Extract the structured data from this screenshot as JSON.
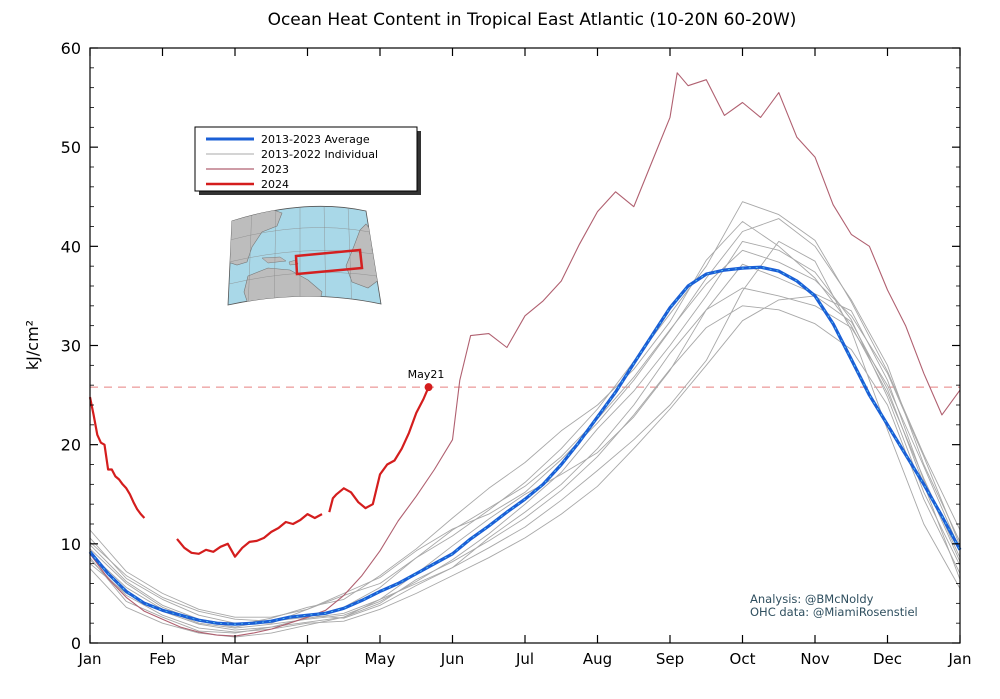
{
  "colors": {
    "average": "#1a5fd6",
    "average_core": "#5fc8f0",
    "individual": "#a8a8a8",
    "y2023": "#b06070",
    "y2024": "#d41d1d",
    "reference_line": "#e88080",
    "map_ocean": "#a9d8e8",
    "map_land": "#bdbdbd",
    "map_box": "#d42020"
  },
  "credits": {
    "analysis": "Analysis: @BMcNoldy",
    "data": "OHC data: @MiamiRosenstiel"
  },
  "chart_data": {
    "type": "line",
    "title": "Ocean Heat Content in Tropical East Atlantic (10-20N 60-20W)",
    "ylabel": "kJ/cm²",
    "xlabel": "",
    "ylim": [
      0,
      60
    ],
    "xlim": [
      0,
      12
    ],
    "yticks": [
      0,
      10,
      20,
      30,
      40,
      50,
      60
    ],
    "xtick_labels": [
      "Jan",
      "Feb",
      "Mar",
      "Apr",
      "May",
      "Jun",
      "Jul",
      "Aug",
      "Sep",
      "Oct",
      "Nov",
      "Dec",
      "Jan"
    ],
    "grid": false,
    "legend_position": "upper-left",
    "legend": [
      {
        "label": "2013-2023 Average",
        "series": "average"
      },
      {
        "label": "2013-2022 Individual",
        "series": "individual"
      },
      {
        "label": "2023",
        "series": "y2023"
      },
      {
        "label": "2024",
        "series": "y2024"
      }
    ],
    "reference_line": {
      "y": 25.8,
      "style": "dashed"
    },
    "annotation": {
      "text": "May21",
      "x": 4.67,
      "y": 25.8
    },
    "average": {
      "x": [
        0,
        0.25,
        0.5,
        0.75,
        1,
        1.25,
        1.5,
        1.75,
        2,
        2.25,
        2.5,
        2.75,
        3,
        3.25,
        3.5,
        3.75,
        4,
        4.25,
        4.5,
        4.75,
        5,
        5.25,
        5.5,
        5.75,
        6,
        6.25,
        6.5,
        6.75,
        7,
        7.25,
        7.5,
        7.75,
        8,
        8.25,
        8.5,
        8.75,
        9,
        9.25,
        9.5,
        9.75,
        10,
        10.25,
        10.5,
        10.75,
        11,
        11.25,
        11.5,
        11.75,
        12
      ],
      "y": [
        9.2,
        7.0,
        5.2,
        4.0,
        3.3,
        2.8,
        2.3,
        2.0,
        1.9,
        2.0,
        2.2,
        2.6,
        2.8,
        3.0,
        3.5,
        4.3,
        5.2,
        6.0,
        7.0,
        8.0,
        9.0,
        10.5,
        11.8,
        13.2,
        14.5,
        16.0,
        18.0,
        20.3,
        22.8,
        25.3,
        28.2,
        31.0,
        33.8,
        36.0,
        37.2,
        37.6,
        37.8,
        37.9,
        37.5,
        36.5,
        35.0,
        32.2,
        28.6,
        25.0,
        22.0,
        19.0,
        16.0,
        12.8,
        9.4
      ]
    },
    "y2024": {
      "segments": [
        {
          "x": [
            0,
            0.05,
            0.1,
            0.15,
            0.2,
            0.25,
            0.3,
            0.35,
            0.4,
            0.45,
            0.5,
            0.55,
            0.6,
            0.65,
            0.7,
            0.75
          ],
          "y": [
            24.8,
            23.0,
            21.0,
            20.2,
            20.0,
            17.5,
            17.5,
            16.8,
            16.5,
            16.0,
            15.6,
            15.0,
            14.2,
            13.5,
            13.0,
            12.6
          ]
        },
        {
          "x": [
            1.2,
            1.3,
            1.4,
            1.5,
            1.6,
            1.7,
            1.8,
            1.9,
            2.0,
            2.1,
            2.2,
            2.3,
            2.4,
            2.5,
            2.6,
            2.7,
            2.8,
            2.9,
            3.0,
            3.1,
            3.2
          ],
          "y": [
            10.5,
            9.6,
            9.1,
            9.0,
            9.4,
            9.2,
            9.7,
            10.0,
            8.7,
            9.6,
            10.2,
            10.3,
            10.6,
            11.2,
            11.6,
            12.2,
            12.0,
            12.4,
            13.0,
            12.6,
            13.0
          ]
        },
        {
          "x": [
            3.3,
            3.35,
            3.4,
            3.5,
            3.6,
            3.7,
            3.8,
            3.9,
            4.0,
            4.1,
            4.2,
            4.3,
            4.4,
            4.5,
            4.6,
            4.67
          ],
          "y": [
            13.2,
            14.6,
            15.0,
            15.6,
            15.2,
            14.2,
            13.6,
            14.0,
            17.0,
            18.0,
            18.4,
            19.6,
            21.2,
            23.2,
            24.6,
            25.8
          ]
        }
      ]
    },
    "y2023": {
      "x": [
        0,
        0.25,
        0.5,
        0.75,
        1,
        1.25,
        1.5,
        1.75,
        2,
        2.25,
        2.5,
        2.75,
        3,
        3.25,
        3.5,
        3.75,
        4,
        4.25,
        4.5,
        4.75,
        5,
        5.1,
        5.25,
        5.5,
        5.75,
        6,
        6.25,
        6.5,
        6.75,
        7,
        7.25,
        7.5,
        7.75,
        8,
        8.1,
        8.25,
        8.5,
        8.75,
        9,
        9.25,
        9.5,
        9.75,
        10,
        10.25,
        10.5,
        10.75,
        11,
        11.25,
        11.5,
        11.75,
        12
      ],
      "y": [
        9.0,
        6.5,
        4.6,
        3.2,
        2.4,
        1.6,
        1.1,
        0.8,
        0.7,
        1.0,
        1.4,
        2.0,
        2.6,
        3.3,
        4.8,
        6.8,
        9.3,
        12.3,
        14.8,
        17.5,
        20.5,
        26.5,
        31.0,
        31.2,
        29.8,
        33.0,
        34.5,
        36.5,
        40.2,
        43.5,
        45.5,
        44.0,
        48.5,
        53.0,
        57.5,
        56.2,
        56.8,
        53.2,
        54.5,
        53.0,
        55.5,
        51.0,
        49.0,
        44.2,
        41.2,
        40.0,
        35.6,
        32.0,
        27.2,
        23.0,
        25.5
      ]
    },
    "individual": [
      {
        "x": [
          0,
          0.5,
          1,
          1.5,
          2,
          2.5,
          3,
          3.5,
          4,
          4.5,
          5,
          5.5,
          6,
          6.5,
          7,
          7.5,
          8,
          8.5,
          9,
          9.5,
          10,
          10.5,
          11,
          11.5,
          12
        ],
        "y": [
          8.6,
          4.2,
          2.6,
          1.2,
          1.0,
          1.6,
          2.1,
          2.6,
          4.0,
          6.4,
          8.2,
          10.3,
          12.6,
          15.4,
          18.8,
          23.0,
          27.6,
          31.8,
          34.0,
          33.6,
          32.2,
          29.6,
          24.0,
          14.5,
          7.0
        ]
      },
      {
        "x": [
          0,
          0.5,
          1,
          1.5,
          2,
          2.5,
          3,
          3.5,
          4,
          4.5,
          5,
          5.5,
          6,
          6.5,
          7,
          7.5,
          8,
          8.5,
          9,
          9.5,
          10,
          10.5,
          11,
          11.5,
          12
        ],
        "y": [
          10.6,
          6.5,
          4.4,
          2.8,
          2.0,
          2.0,
          3.4,
          5.0,
          6.6,
          9.3,
          11.5,
          13.0,
          15.2,
          18.5,
          22.2,
          26.5,
          31.5,
          36.8,
          41.5,
          42.8,
          40.0,
          34.6,
          28.0,
          18.0,
          10.2
        ]
      },
      {
        "x": [
          0,
          0.5,
          1,
          1.5,
          2,
          2.5,
          3,
          3.5,
          4,
          4.5,
          5,
          5.5,
          6,
          6.5,
          7,
          7.5,
          8,
          8.5,
          9,
          9.5,
          10,
          10.5,
          11,
          11.5,
          12
        ],
        "y": [
          9.5,
          6.0,
          3.6,
          2.2,
          1.6,
          2.3,
          2.8,
          2.5,
          3.8,
          5.8,
          7.6,
          9.6,
          11.7,
          14.4,
          17.4,
          20.5,
          24.0,
          28.5,
          35.5,
          40.5,
          38.5,
          31.5,
          21.5,
          12.0,
          5.5
        ]
      },
      {
        "x": [
          0,
          0.5,
          1,
          1.5,
          2,
          2.5,
          3,
          3.5,
          4,
          4.5,
          5,
          5.5,
          6,
          6.5,
          7,
          7.5,
          8,
          8.5,
          9,
          9.5,
          10,
          10.5,
          11,
          11.5,
          12
        ],
        "y": [
          7.5,
          3.6,
          2.0,
          1.0,
          0.6,
          1.0,
          1.8,
          2.6,
          4.4,
          7.0,
          9.8,
          12.5,
          15.0,
          17.0,
          19.2,
          22.8,
          27.5,
          33.6,
          38.2,
          36.8,
          35.2,
          33.5,
          26.5,
          16.4,
          8.2
        ]
      },
      {
        "x": [
          0,
          0.5,
          1,
          1.5,
          2,
          2.5,
          3,
          3.5,
          4,
          4.5,
          5,
          5.5,
          6,
          6.5,
          7,
          7.5,
          8,
          8.5,
          9,
          9.5,
          10,
          10.5,
          11,
          11.5,
          12
        ],
        "y": [
          11.4,
          7.2,
          5.0,
          3.4,
          2.6,
          2.6,
          3.4,
          4.8,
          6.0,
          8.6,
          10.8,
          13.4,
          16.2,
          19.6,
          23.6,
          28.4,
          33.2,
          38.0,
          44.5,
          43.2,
          40.6,
          34.4,
          27.4,
          19.0,
          11.4
        ]
      },
      {
        "x": [
          0,
          0.5,
          1,
          1.5,
          2,
          2.5,
          3,
          3.5,
          4,
          4.5,
          5,
          5.5,
          6,
          6.5,
          7,
          7.5,
          8,
          8.5,
          9,
          9.5,
          10,
          10.5,
          11,
          11.5,
          12
        ],
        "y": [
          8.0,
          5.0,
          3.2,
          1.9,
          1.3,
          1.6,
          2.5,
          3.0,
          4.4,
          6.0,
          7.6,
          10.6,
          13.2,
          16.0,
          19.6,
          24.0,
          29.2,
          33.6,
          35.8,
          35.0,
          34.0,
          31.8,
          26.0,
          17.8,
          9.4
        ]
      },
      {
        "x": [
          0,
          0.5,
          1,
          1.5,
          2,
          2.5,
          3,
          3.5,
          4,
          4.5,
          5,
          5.5,
          6,
          6.5,
          7,
          7.5,
          8,
          8.5,
          9,
          9.5,
          10,
          10.5,
          11,
          11.5,
          12
        ],
        "y": [
          9.9,
          6.2,
          3.8,
          2.4,
          1.8,
          2.5,
          3.6,
          4.4,
          6.8,
          9.5,
          12.6,
          15.6,
          18.2,
          21.4,
          24.0,
          27.6,
          32.4,
          38.6,
          42.5,
          40.0,
          36.8,
          32.0,
          25.2,
          16.6,
          8.6
        ]
      },
      {
        "x": [
          0,
          0.5,
          1,
          1.5,
          2,
          2.5,
          3,
          3.5,
          4,
          4.5,
          5,
          5.5,
          6,
          6.5,
          7,
          7.5,
          8,
          8.5,
          9,
          9.5,
          10,
          10.5,
          11,
          11.5,
          12
        ],
        "y": [
          8.4,
          4.8,
          2.8,
          1.5,
          1.1,
          1.4,
          2.0,
          2.2,
          3.4,
          5.0,
          6.8,
          8.6,
          10.6,
          13.0,
          15.8,
          19.6,
          23.6,
          28.0,
          32.5,
          34.6,
          35.0,
          32.4,
          25.6,
          16.0,
          6.4
        ]
      },
      {
        "x": [
          0,
          0.5,
          1,
          1.5,
          2,
          2.5,
          3,
          3.5,
          4,
          4.5,
          5,
          5.5,
          6,
          6.5,
          7,
          7.5,
          8,
          8.5,
          9,
          9.5,
          10,
          10.5,
          11,
          11.5,
          12
        ],
        "y": [
          10.2,
          6.8,
          4.6,
          3.2,
          2.4,
          2.2,
          2.6,
          3.6,
          5.6,
          8.6,
          11.4,
          13.6,
          15.8,
          18.8,
          22.6,
          26.8,
          31.6,
          36.2,
          39.6,
          38.4,
          36.6,
          33.0,
          27.2,
          18.8,
          9.8
        ]
      },
      {
        "x": [
          0,
          0.5,
          1,
          1.5,
          2,
          2.5,
          3,
          3.5,
          4,
          4.5,
          5,
          5.5,
          6,
          6.5,
          7,
          7.5,
          8,
          8.5,
          9,
          9.5,
          10,
          10.5,
          11,
          11.5,
          12
        ],
        "y": [
          9.0,
          5.6,
          3.4,
          2.0,
          1.5,
          1.9,
          2.4,
          2.8,
          4.2,
          6.2,
          8.4,
          11.0,
          14.0,
          17.2,
          21.6,
          25.4,
          30.0,
          35.0,
          40.5,
          39.6,
          37.4,
          32.6,
          24.8,
          15.2,
          7.8
        ]
      }
    ]
  }
}
